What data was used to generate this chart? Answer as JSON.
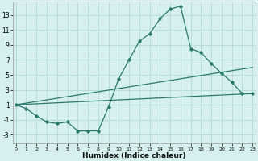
{
  "xlabel": "Humidex (Indice chaleur)",
  "background_color": "#d6f0ed",
  "grid_color": "#b8ddd9",
  "line_color": "#2a7a6a",
  "x_ticks": [
    0,
    1,
    2,
    3,
    4,
    5,
    6,
    7,
    8,
    9,
    10,
    11,
    12,
    13,
    14,
    15,
    16,
    17,
    18,
    19,
    20,
    21,
    22,
    23
  ],
  "y_ticks": [
    -3,
    -1,
    1,
    3,
    5,
    7,
    9,
    11,
    13
  ],
  "xlim": [
    -0.3,
    23.3
  ],
  "ylim": [
    -4.2,
    14.8
  ],
  "line1_x": [
    0,
    1,
    2,
    3,
    4,
    5,
    6,
    7,
    8,
    9,
    10,
    11,
    12,
    13,
    14,
    15,
    16,
    17,
    18,
    19,
    20,
    21,
    22,
    23
  ],
  "line1_y": [
    1.0,
    0.5,
    -0.5,
    -1.3,
    -1.5,
    -1.3,
    -2.5,
    -2.5,
    -2.5,
    0.7,
    4.5,
    7.0,
    9.5,
    10.5,
    12.5,
    13.8,
    14.2,
    8.5,
    8.0,
    6.5,
    5.2,
    4.0,
    2.5,
    2.5
  ],
  "line2_x": [
    0,
    23
  ],
  "line2_y": [
    1.0,
    6.0
  ],
  "line3_x": [
    0,
    23
  ],
  "line3_y": [
    1.0,
    2.5
  ],
  "xlabel_fontsize": 6.5,
  "tick_fontsize_x": 4.5,
  "tick_fontsize_y": 5.5
}
